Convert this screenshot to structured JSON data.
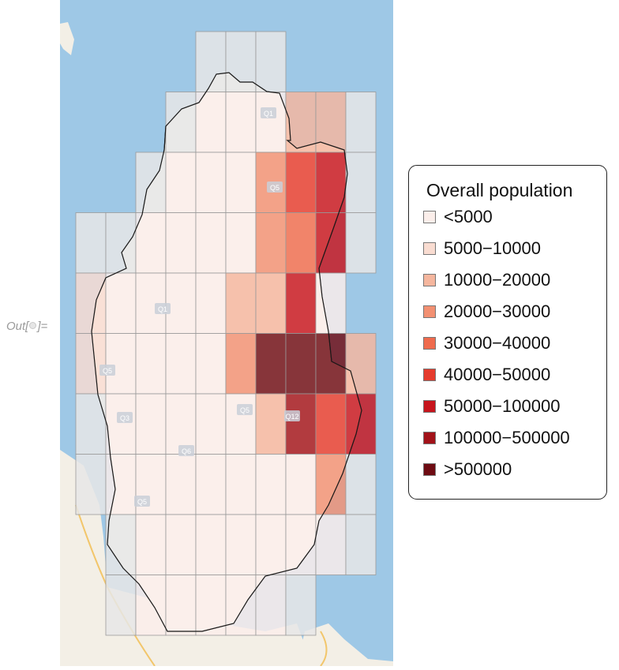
{
  "output_prompt": {
    "prefix": "Out[",
    "suffix": "]="
  },
  "map": {
    "legend_title": "Overall population",
    "legend": [
      {
        "label": "<5000",
        "color": "#fbeeea"
      },
      {
        "label": "5000−10000",
        "color": "#f9dcd1"
      },
      {
        "label": "10000−20000",
        "color": "#f5b69e"
      },
      {
        "label": "20000−30000",
        "color": "#f29072"
      },
      {
        "label": "30000−40000",
        "color": "#ef6b4d"
      },
      {
        "label": "40000−50000",
        "color": "#e53a2c"
      },
      {
        "label": "50000−100000",
        "color": "#c7141c"
      },
      {
        "label": "100000−500000",
        "color": "#a21219"
      },
      {
        "label": ">500000",
        "color": "#6e0b12"
      }
    ],
    "nodata_color": "#e6e6e6",
    "zone_labels": [
      "Q1",
      "Q5",
      "Q1",
      "Q5",
      "Q5",
      "Q3",
      "Q6",
      "Q5",
      "Q12"
    ]
  }
}
